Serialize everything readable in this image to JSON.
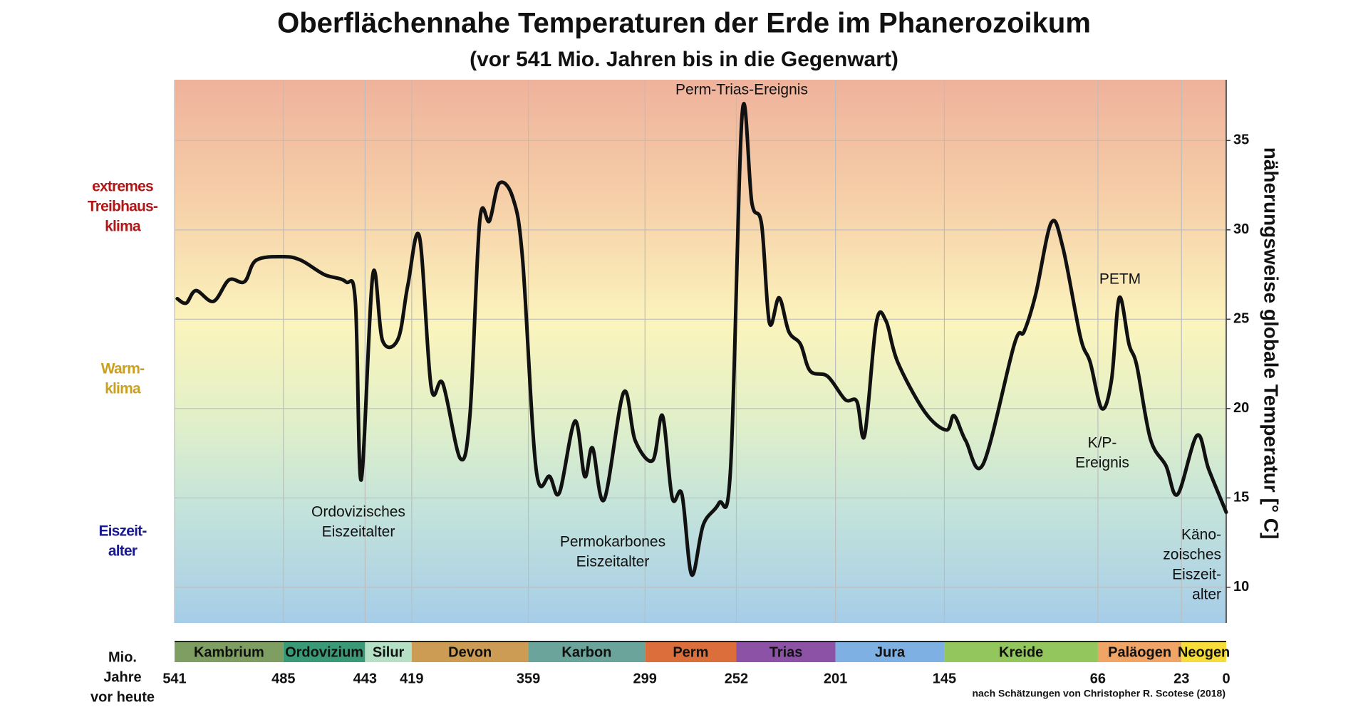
{
  "chart_data": {
    "type": "line",
    "title": "Oberflächennahe Temperaturen der Erde im Phanerozoikum",
    "subtitle": "(vor 541 Mio. Jahren bis in die Gegenwart)",
    "x_label": [
      "Mio.",
      "Jahre",
      "vor heute"
    ],
    "y_label": "näherungsweise globale Temperatur [° C]",
    "source": "nach Schätzungen von Christopher R. Scotese (2018)",
    "xlim": [
      541,
      0
    ],
    "xticks": [
      541,
      485,
      443,
      419,
      359,
      299,
      252,
      201,
      145,
      66,
      23,
      0
    ],
    "ylim": [
      8,
      38.4
    ],
    "yticks": [
      10,
      15,
      20,
      25,
      30,
      35
    ],
    "y_axis_side": "right",
    "grid": true,
    "series": [
      {
        "name": "Temperatur",
        "color": "#111111",
        "x": [
          539.6,
          535,
          530,
          521,
          513,
          505,
          499,
          485,
          476,
          464,
          453,
          448,
          445,
          439,
          434,
          426,
          421,
          415,
          409,
          403,
          394,
          389,
          384,
          379,
          374,
          367,
          362,
          355,
          348,
          343,
          335,
          330,
          326,
          320,
          310,
          304,
          295,
          290,
          285,
          280,
          275,
          269,
          261,
          255,
          249,
          244,
          239,
          235,
          230,
          225,
          219,
          214,
          205,
          196,
          190,
          186,
          180,
          175,
          169,
          155,
          144,
          140,
          134,
          125,
          109,
          104,
          98,
          90,
          84,
          75,
          70,
          64,
          59,
          55,
          50,
          46,
          39,
          31,
          25,
          15,
          9,
          0
        ],
        "values": [
          26.15,
          25.9,
          26.6,
          26,
          27.2,
          27.1,
          28.3,
          28.5,
          28.3,
          27.5,
          27.1,
          26,
          16,
          27.5,
          23.8,
          23.9,
          26.9,
          29.6,
          21.2,
          21.4,
          17.2,
          19.7,
          30.5,
          30.5,
          32.6,
          31.8,
          28.4,
          16.6,
          16.2,
          15.3,
          19.3,
          16.2,
          17.8,
          14.9,
          20.9,
          18.2,
          17.1,
          19.6,
          15,
          15.2,
          10.7,
          13.5,
          14.7,
          16.6,
          36.5,
          31.5,
          30.3,
          24.8,
          26.2,
          24.3,
          23.6,
          22.1,
          21.8,
          20.5,
          20.4,
          18.5,
          24.8,
          24.9,
          22.6,
          19.8,
          18.8,
          19.6,
          18.2,
          16.9,
          23.6,
          24.3,
          26.4,
          30.4,
          29,
          24,
          22.6,
          20,
          21.6,
          26.2,
          23.6,
          22.4,
          18.3,
          16.8,
          15.2,
          18.5,
          16.6,
          14.2
        ]
      }
    ],
    "periods": [
      {
        "name": "Kambrium",
        "start": 541,
        "end": 485,
        "color": "#7f9f62"
      },
      {
        "name": "Ordovizium",
        "start": 485,
        "end": 443,
        "color": "#3a9a78"
      },
      {
        "name": "Silur",
        "start": 443,
        "end": 419,
        "color": "#b5e0c6"
      },
      {
        "name": "Devon",
        "start": 419,
        "end": 359,
        "color": "#cc9c55"
      },
      {
        "name": "Karbon",
        "start": 359,
        "end": 299,
        "color": "#6aa49a"
      },
      {
        "name": "Perm",
        "start": 299,
        "end": 252,
        "color": "#dc6e3c"
      },
      {
        "name": "Trias",
        "start": 252,
        "end": 201,
        "color": "#8c52a6"
      },
      {
        "name": "Jura",
        "start": 201,
        "end": 145,
        "color": "#7fb0e4"
      },
      {
        "name": "Kreide",
        "start": 145,
        "end": 66,
        "color": "#94c65e"
      },
      {
        "name": "Paläogen",
        "start": 66,
        "end": 23,
        "color": "#f0a465"
      },
      {
        "name": "Neogen",
        "start": 23,
        "end": 0,
        "color": "#f7dd3a"
      }
    ],
    "climate_labels": [
      {
        "lines": [
          "extremes",
          "Treibhaus-",
          "klima"
        ],
        "color": "#b01818"
      },
      {
        "lines": [
          "Warm-",
          "klima"
        ],
        "color": "#c9a020"
      },
      {
        "lines": [
          "Eiszeit-",
          "alter"
        ],
        "color": "#1a1a90"
      }
    ],
    "annotations": [
      {
        "lines": [
          "Perm-Trias-Ereignis"
        ]
      },
      {
        "lines": [
          "Ordovizisches",
          "Eiszeitalter"
        ]
      },
      {
        "lines": [
          "Permokarbones",
          "Eiszeitalter"
        ]
      },
      {
        "lines": [
          "PETM"
        ]
      },
      {
        "lines": [
          "K/P-",
          "Ereignis"
        ]
      },
      {
        "lines": [
          "Käno-",
          "zoisches",
          "Eiszeit-",
          "alter"
        ]
      }
    ]
  }
}
